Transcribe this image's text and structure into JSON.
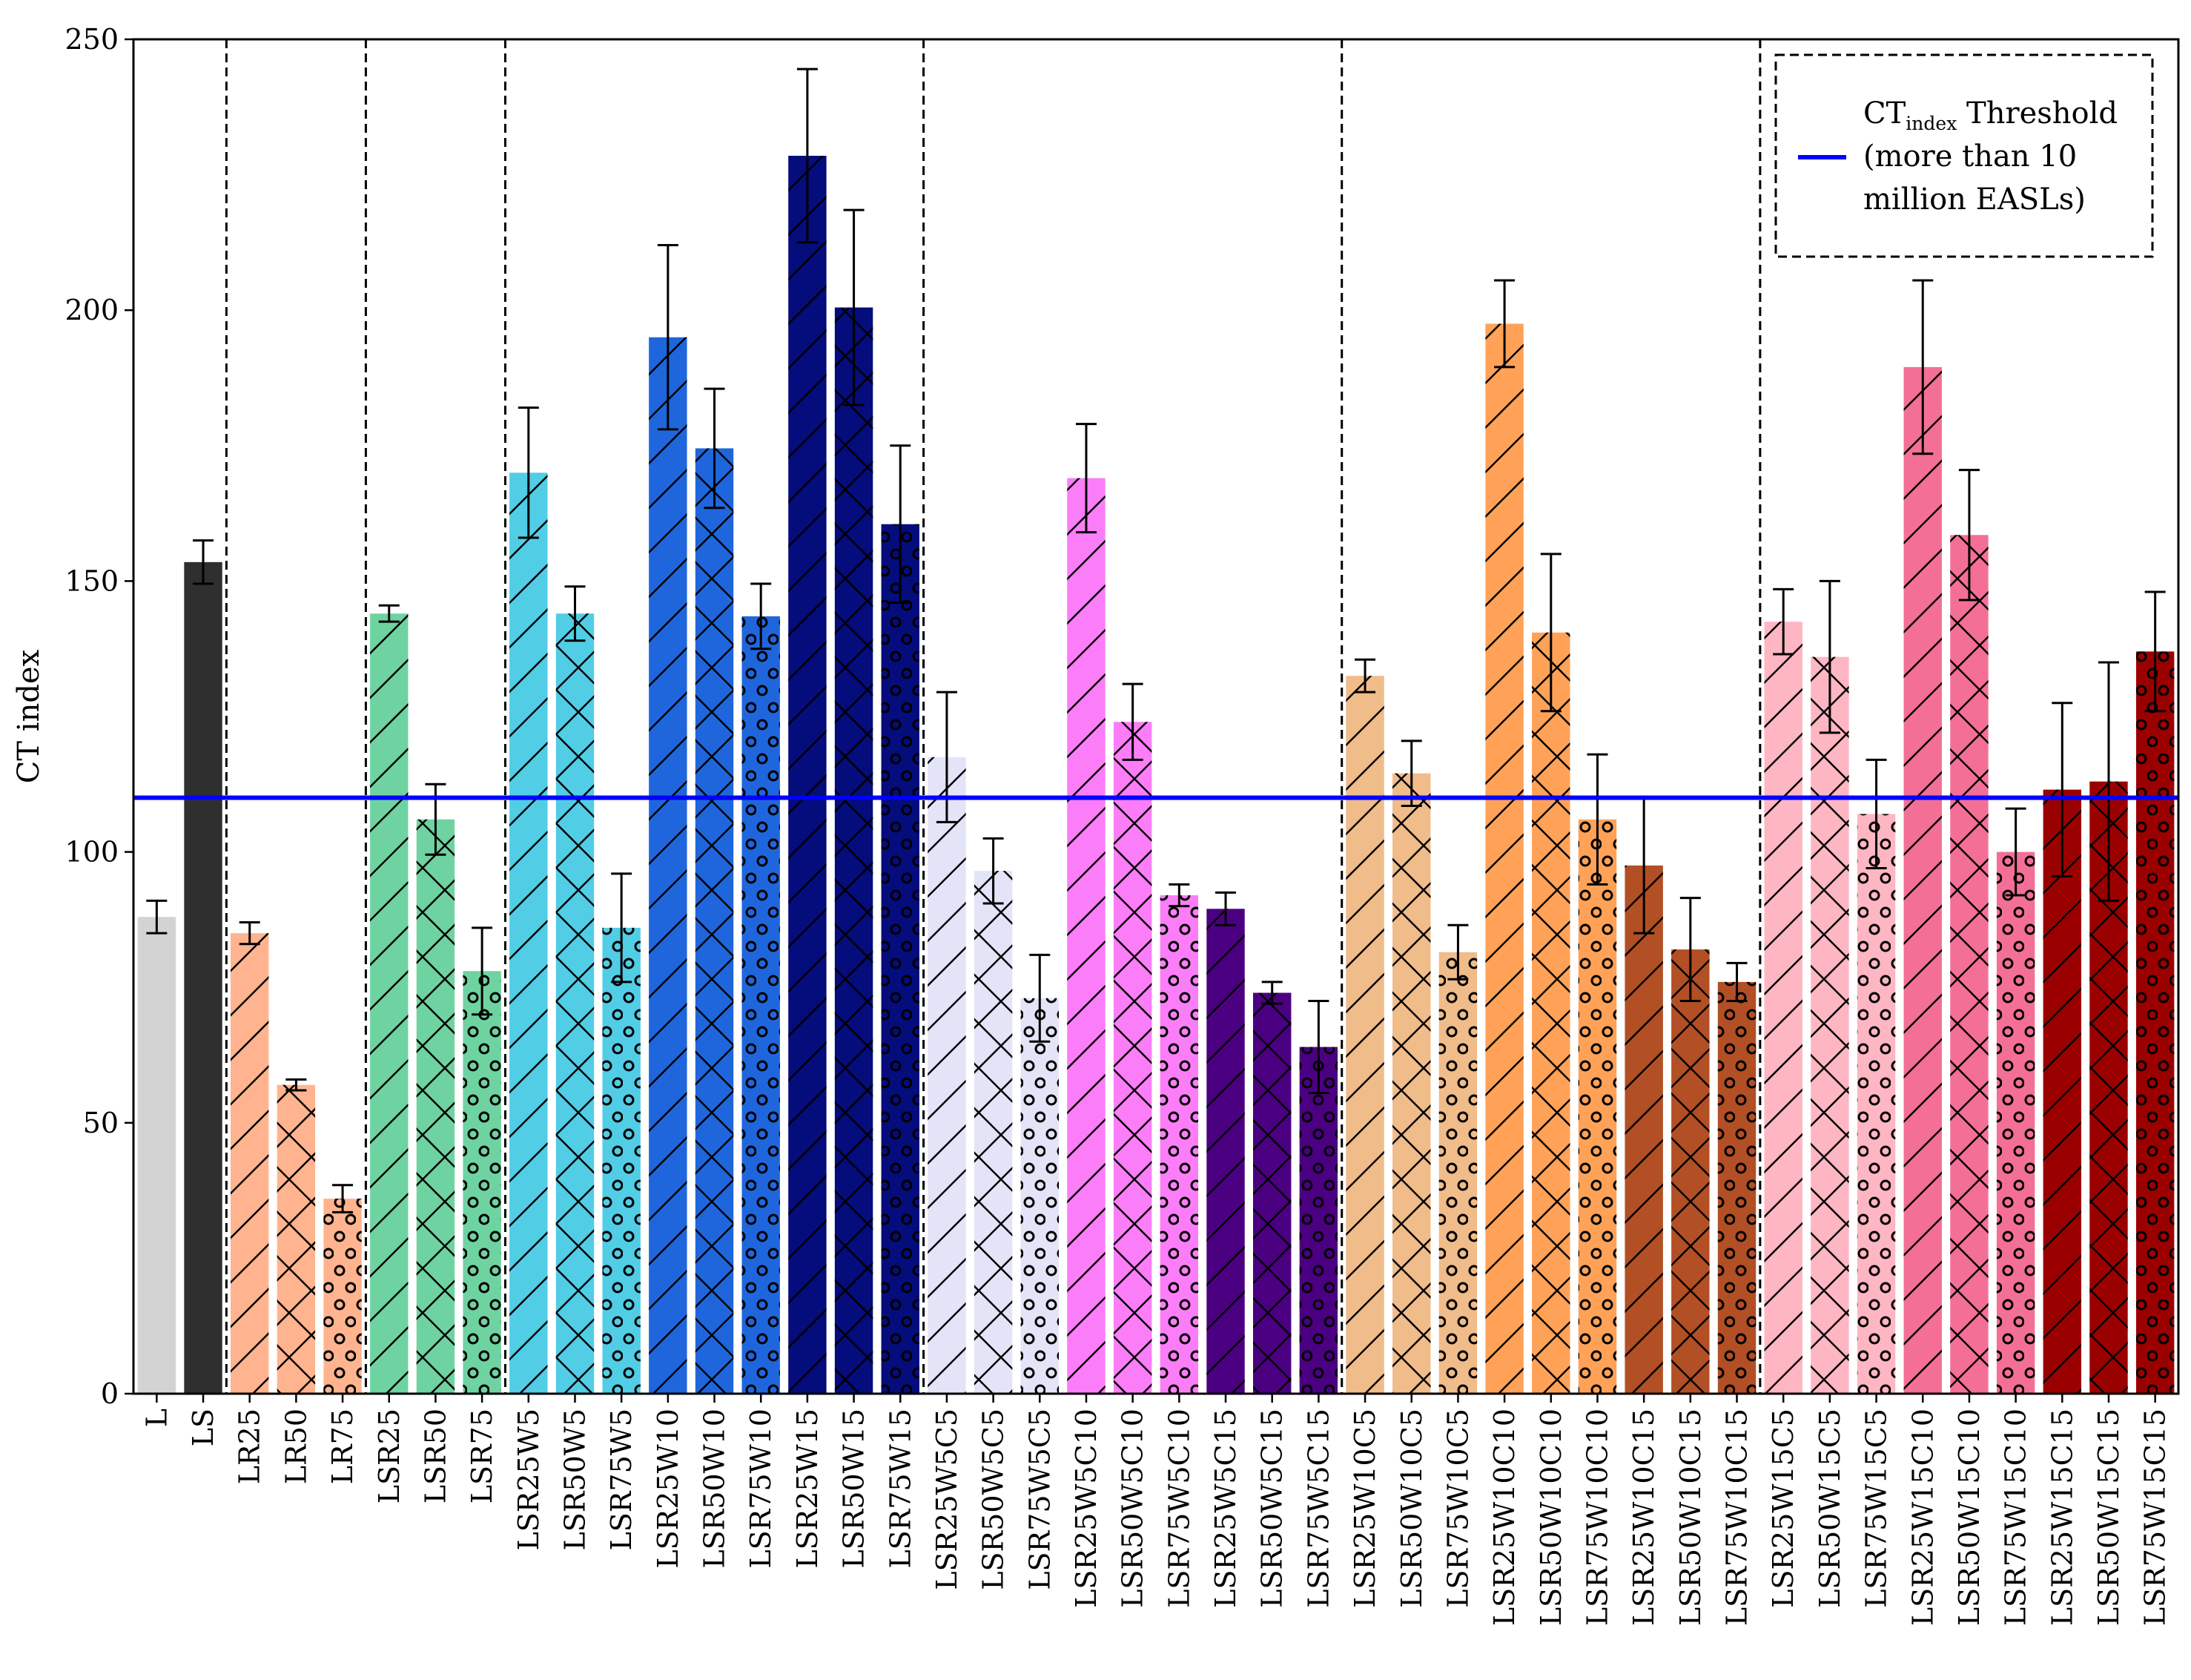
{
  "chart_data": {
    "type": "bar",
    "title": "",
    "xlabel": "",
    "ylabel": "CT index",
    "ylim": [
      0,
      250
    ],
    "yticks": [
      0,
      50,
      100,
      150,
      200,
      250
    ],
    "grid": false,
    "threshold": {
      "value": 110,
      "color": "#0000ff"
    },
    "legend": {
      "position": "top-right",
      "label_main": "CT",
      "label_sub": "index",
      "label_rest": " Threshold",
      "line2": "(more than 10",
      "line3": "million EASLs)"
    },
    "group_separators_after": [
      "LS",
      "LR75",
      "LSR75",
      "LSR75W15",
      "LSR75W5C15",
      "LSR75W10C15"
    ],
    "categories": [
      "L",
      "LS",
      "LR25",
      "LR50",
      "LR75",
      "LSR25",
      "LSR50",
      "LSR75",
      "LSR25W5",
      "LSR50W5",
      "LSR75W5",
      "LSR25W10",
      "LSR50W10",
      "LSR75W10",
      "LSR25W15",
      "LSR50W15",
      "LSR75W15",
      "LSR25W5C5",
      "LSR50W5C5",
      "LSR75W5C5",
      "LSR25W5C10",
      "LSR50W5C10",
      "LSR75W5C10",
      "LSR25W5C15",
      "LSR50W5C15",
      "LSR75W5C15",
      "LSR25W10C5",
      "LSR50W10C5",
      "LSR75W10C5",
      "LSR25W10C10",
      "LSR50W10C10",
      "LSR75W10C10",
      "LSR25W10C15",
      "LSR50W10C15",
      "LSR75W10C15",
      "LSR25W15C5",
      "LSR50W15C5",
      "LSR75W15C5",
      "LSR25W15C10",
      "LSR50W15C10",
      "LSR75W15C10",
      "LSR25W15C15",
      "LSR50W15C15",
      "LSR75W15C15"
    ],
    "values": [
      88,
      153.5,
      85,
      57,
      36,
      144,
      106,
      78,
      170,
      144,
      86,
      195,
      174.5,
      143.5,
      228.5,
      200.5,
      160.5,
      117.5,
      96.5,
      73,
      169,
      124,
      92,
      89.5,
      74,
      64,
      132.5,
      114.5,
      81.5,
      197.5,
      140.5,
      106,
      97.5,
      82,
      76,
      142.5,
      136,
      107,
      189.5,
      158.5,
      100,
      111.5,
      113,
      137
    ],
    "errors": [
      3,
      4,
      2,
      1,
      2.5,
      1.5,
      6.5,
      8,
      12,
      5,
      10,
      17,
      11,
      6,
      16,
      18,
      14.5,
      12,
      6,
      8,
      10,
      7,
      2,
      3,
      2,
      8.5,
      3,
      6,
      5,
      8,
      14.5,
      12,
      12.5,
      9.5,
      3.5,
      6,
      14,
      10,
      16,
      12,
      8,
      16,
      22,
      11
    ],
    "colors": [
      "#d3d3d3",
      "#2f2f2f",
      "#ffb48f",
      "#ffb48f",
      "#ffb48f",
      "#6fd3a1",
      "#6fd3a1",
      "#6fd3a1",
      "#52cde6",
      "#52cde6",
      "#52cde6",
      "#1f66dd",
      "#1f66dd",
      "#1f66dd",
      "#050c7c",
      "#050c7c",
      "#050c7c",
      "#e4e4f8",
      "#e4e4f8",
      "#e4e4f8",
      "#fb7ef8",
      "#fb7ef8",
      "#fb7ef8",
      "#4b0082",
      "#4b0082",
      "#4b0082",
      "#efbc8a",
      "#efbc8a",
      "#efbc8a",
      "#ffa258",
      "#ffa258",
      "#ffa258",
      "#b24f24",
      "#b24f24",
      "#b24f24",
      "#ffb6c3",
      "#ffb6c3",
      "#ffb6c3",
      "#f46f96",
      "#f46f96",
      "#f46f96",
      "#9b0000",
      "#9b0000",
      "#9b0000"
    ],
    "hatches": [
      "none",
      "none",
      "slash",
      "cross",
      "dots",
      "slash",
      "cross",
      "dots",
      "slash",
      "cross",
      "dots",
      "slash",
      "cross",
      "dots",
      "slash",
      "cross",
      "dots",
      "slash",
      "cross",
      "dots",
      "slash",
      "cross",
      "dots",
      "slash",
      "cross",
      "dots",
      "slash",
      "cross",
      "dots",
      "slash",
      "cross",
      "dots",
      "slash",
      "cross",
      "dots",
      "slash",
      "cross",
      "dots",
      "slash",
      "cross",
      "dots",
      "slash",
      "cross",
      "dots"
    ]
  }
}
